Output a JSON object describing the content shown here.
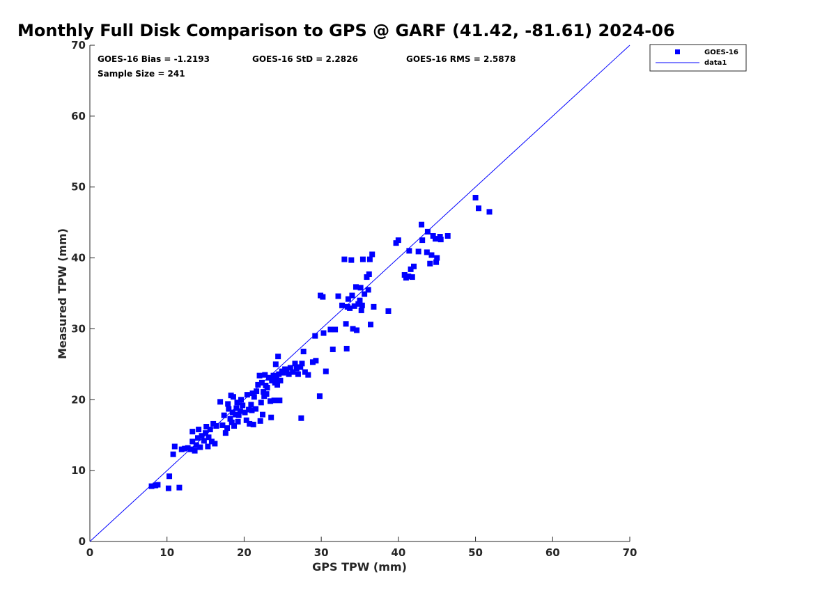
{
  "chart_data": {
    "type": "scatter",
    "title": "Monthly Full Disk Comparison to GPS @ GARF (41.42, -81.61) 2024-06",
    "xlabel": "GPS TPW (mm)",
    "ylabel": "Measured TPW (mm)",
    "xlim": [
      0,
      70
    ],
    "ylim": [
      0,
      70
    ],
    "xticks": [
      "0",
      "10",
      "20",
      "30",
      "40",
      "50",
      "60",
      "70"
    ],
    "yticks": [
      "0",
      "10",
      "20",
      "30",
      "40",
      "50",
      "60",
      "70"
    ],
    "grid": false,
    "legend_position": "outside top-right",
    "stats": {
      "bias": "GOES-16 Bias = -1.2193",
      "std": "GOES-16 StD = 2.2826",
      "rms": "GOES-16 RMS = 2.5878",
      "sample": "Sample Size = 241"
    },
    "series": [
      {
        "name": "GOES-16",
        "kind": "scatter",
        "marker": "square",
        "color": "#0000ff",
        "points": [
          [
            8.0,
            7.8
          ],
          [
            8.5,
            7.9
          ],
          [
            8.8,
            8.0
          ],
          [
            10.2,
            7.5
          ],
          [
            10.3,
            9.2
          ],
          [
            11.6,
            7.6
          ],
          [
            10.8,
            12.3
          ],
          [
            11.0,
            13.4
          ],
          [
            11.9,
            13.0
          ],
          [
            12.3,
            13.1
          ],
          [
            12.7,
            13.2
          ],
          [
            13.1,
            13.0
          ],
          [
            13.3,
            14.1
          ],
          [
            13.3,
            15.5
          ],
          [
            13.6,
            12.8
          ],
          [
            13.8,
            13.6
          ],
          [
            14.0,
            14.6
          ],
          [
            14.1,
            15.8
          ],
          [
            14.3,
            13.3
          ],
          [
            14.5,
            14.9
          ],
          [
            14.8,
            14.2
          ],
          [
            15.0,
            15.3
          ],
          [
            15.1,
            16.2
          ],
          [
            15.3,
            13.4
          ],
          [
            15.4,
            14.7
          ],
          [
            15.6,
            15.8
          ],
          [
            15.8,
            14.1
          ],
          [
            16.0,
            16.6
          ],
          [
            16.2,
            13.8
          ],
          [
            16.4,
            16.3
          ],
          [
            16.9,
            19.7
          ],
          [
            17.2,
            16.4
          ],
          [
            17.4,
            17.8
          ],
          [
            17.6,
            15.3
          ],
          [
            17.8,
            16.0
          ],
          [
            17.9,
            19.4
          ],
          [
            18.0,
            18.7
          ],
          [
            18.2,
            17.3
          ],
          [
            18.3,
            20.6
          ],
          [
            18.4,
            16.8
          ],
          [
            18.5,
            18.2
          ],
          [
            18.6,
            20.4
          ],
          [
            18.7,
            16.3
          ],
          [
            18.9,
            17.9
          ],
          [
            19.0,
            18.8
          ],
          [
            19.1,
            19.6
          ],
          [
            19.2,
            16.9
          ],
          [
            19.3,
            17.8
          ],
          [
            19.5,
            18.4
          ],
          [
            19.6,
            20.0
          ],
          [
            19.8,
            19.2
          ],
          [
            20.1,
            18.2
          ],
          [
            20.3,
            17.1
          ],
          [
            20.4,
            20.7
          ],
          [
            20.6,
            18.6
          ],
          [
            20.7,
            16.6
          ],
          [
            20.9,
            19.3
          ],
          [
            21.0,
            18.5
          ],
          [
            21.1,
            20.9
          ],
          [
            21.2,
            16.5
          ],
          [
            21.3,
            20.4
          ],
          [
            21.5,
            18.7
          ],
          [
            21.6,
            21.2
          ],
          [
            21.8,
            22.1
          ],
          [
            22.0,
            23.4
          ],
          [
            22.1,
            17.0
          ],
          [
            22.2,
            19.6
          ],
          [
            22.3,
            22.4
          ],
          [
            22.4,
            17.9
          ],
          [
            22.5,
            21.1
          ],
          [
            22.6,
            20.5
          ],
          [
            22.7,
            23.5
          ],
          [
            22.8,
            22.0
          ],
          [
            22.9,
            20.8
          ],
          [
            23.0,
            21.7
          ],
          [
            23.2,
            23.1
          ],
          [
            23.4,
            19.8
          ],
          [
            23.5,
            17.5
          ],
          [
            23.6,
            22.7
          ],
          [
            23.8,
            23.4
          ],
          [
            23.9,
            19.9
          ],
          [
            24.0,
            22.4
          ],
          [
            24.1,
            25.0
          ],
          [
            24.2,
            23.0
          ],
          [
            24.3,
            22.1
          ],
          [
            24.4,
            26.1
          ],
          [
            24.5,
            23.6
          ],
          [
            24.6,
            19.9
          ],
          [
            24.7,
            22.7
          ],
          [
            24.9,
            24.0
          ],
          [
            25.1,
            23.8
          ],
          [
            25.3,
            24.3
          ],
          [
            25.5,
            24.2
          ],
          [
            25.8,
            23.6
          ],
          [
            26.0,
            24.5
          ],
          [
            26.3,
            23.9
          ],
          [
            26.6,
            25.1
          ],
          [
            26.8,
            24.4
          ],
          [
            27.0,
            23.6
          ],
          [
            27.3,
            24.6
          ],
          [
            27.4,
            17.4
          ],
          [
            27.5,
            25.1
          ],
          [
            27.7,
            26.8
          ],
          [
            27.9,
            23.9
          ],
          [
            28.3,
            23.5
          ],
          [
            28.9,
            25.3
          ],
          [
            29.2,
            29.0
          ],
          [
            29.3,
            25.5
          ],
          [
            29.8,
            20.5
          ],
          [
            29.9,
            34.7
          ],
          [
            30.2,
            34.5
          ],
          [
            30.3,
            29.4
          ],
          [
            30.6,
            24.0
          ],
          [
            31.2,
            29.9
          ],
          [
            31.5,
            27.1
          ],
          [
            31.8,
            29.9
          ],
          [
            32.2,
            34.6
          ],
          [
            32.7,
            33.3
          ],
          [
            33.0,
            39.8
          ],
          [
            33.2,
            30.7
          ],
          [
            33.3,
            27.2
          ],
          [
            33.4,
            33.1
          ],
          [
            33.5,
            34.2
          ],
          [
            33.7,
            32.9
          ],
          [
            33.9,
            39.7
          ],
          [
            34.0,
            34.7
          ],
          [
            34.1,
            30.0
          ],
          [
            34.3,
            33.2
          ],
          [
            34.5,
            35.9
          ],
          [
            34.6,
            29.8
          ],
          [
            34.8,
            33.5
          ],
          [
            35.0,
            34.0
          ],
          [
            35.1,
            35.8
          ],
          [
            35.2,
            32.6
          ],
          [
            35.3,
            33.3
          ],
          [
            35.4,
            39.8
          ],
          [
            35.6,
            34.9
          ],
          [
            35.9,
            37.3
          ],
          [
            36.1,
            35.5
          ],
          [
            36.2,
            37.7
          ],
          [
            36.3,
            39.8
          ],
          [
            36.4,
            30.6
          ],
          [
            36.6,
            40.5
          ],
          [
            36.8,
            33.1
          ],
          [
            38.7,
            32.5
          ],
          [
            39.7,
            42.1
          ],
          [
            40.0,
            42.5
          ],
          [
            40.8,
            37.6
          ],
          [
            41.0,
            37.2
          ],
          [
            41.3,
            37.4
          ],
          [
            41.4,
            41.0
          ],
          [
            41.6,
            38.4
          ],
          [
            41.8,
            37.3
          ],
          [
            42.0,
            38.8
          ],
          [
            42.6,
            40.9
          ],
          [
            43.0,
            44.7
          ],
          [
            43.1,
            42.5
          ],
          [
            43.7,
            40.8
          ],
          [
            43.8,
            43.7
          ],
          [
            44.1,
            39.2
          ],
          [
            44.3,
            40.4
          ],
          [
            44.5,
            43.1
          ],
          [
            44.8,
            42.7
          ],
          [
            44.9,
            39.4
          ],
          [
            45.0,
            40.0
          ],
          [
            45.4,
            43.0
          ],
          [
            45.5,
            42.6
          ],
          [
            46.4,
            43.1
          ],
          [
            50.0,
            48.5
          ],
          [
            50.4,
            47.0
          ],
          [
            51.8,
            46.5
          ]
        ]
      },
      {
        "name": "data1",
        "kind": "line",
        "color": "#0000ff",
        "points": [
          [
            0,
            0
          ],
          [
            70,
            70
          ]
        ]
      }
    ]
  }
}
